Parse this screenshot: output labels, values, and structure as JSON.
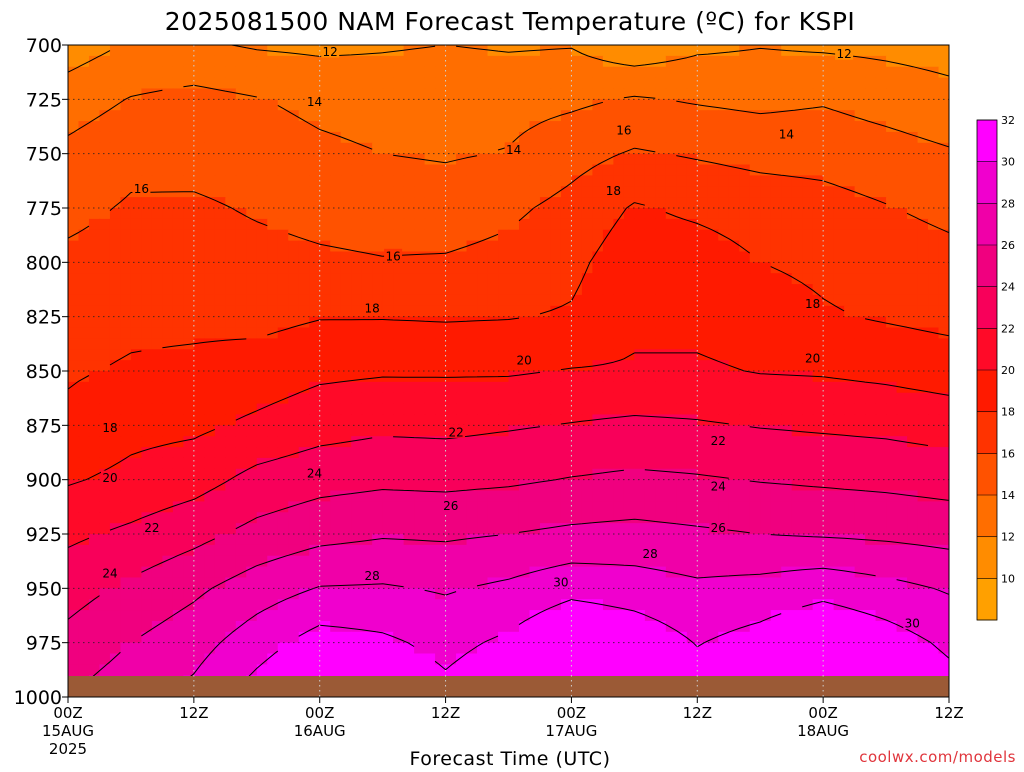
{
  "chart_data": {
    "type": "heatmap",
    "title": "2025081500 NAM Forecast Temperature (ºC) for KSPI",
    "xlabel": "Forecast Time (UTC)",
    "ylabel": "",
    "y_axis": {
      "ticks": [
        700,
        725,
        750,
        775,
        800,
        825,
        850,
        875,
        900,
        925,
        950,
        975,
        1000
      ],
      "range": [
        700,
        1000
      ],
      "reversed": true
    },
    "x_axis": {
      "range_hours": [
        0,
        84
      ],
      "ticks": [
        {
          "hour": 0,
          "top": "00Z",
          "mid": "15AUG",
          "bottom": "2025"
        },
        {
          "hour": 12,
          "top": "12Z",
          "mid": "",
          "bottom": ""
        },
        {
          "hour": 24,
          "top": "00Z",
          "mid": "16AUG",
          "bottom": ""
        },
        {
          "hour": 36,
          "top": "12Z",
          "mid": "",
          "bottom": ""
        },
        {
          "hour": 48,
          "top": "00Z",
          "mid": "17AUG",
          "bottom": ""
        },
        {
          "hour": 60,
          "top": "12Z",
          "mid": "",
          "bottom": ""
        },
        {
          "hour": 72,
          "top": "00Z",
          "mid": "18AUG",
          "bottom": ""
        },
        {
          "hour": 84,
          "top": "12Z",
          "mid": "",
          "bottom": ""
        }
      ]
    },
    "grid": true,
    "colorbar": {
      "labels": [
        10,
        12,
        14,
        16,
        18,
        20,
        22,
        24,
        26,
        28,
        30,
        32
      ],
      "colors": [
        "#FFA000",
        "#FF8C00",
        "#FF6E00",
        "#FF5200",
        "#FF3300",
        "#FF1A00",
        "#FF0A28",
        "#F8005A",
        "#F0007F",
        "#F000A8",
        "#F000CE",
        "#FF00FF"
      ]
    },
    "contour_levels": [
      12,
      14,
      16,
      18,
      20,
      22,
      24,
      26,
      28,
      30
    ],
    "contour_labels": [
      {
        "text": "12",
        "hour": 25,
        "p": 703
      },
      {
        "text": "12",
        "hour": 74,
        "p": 704
      },
      {
        "text": "14",
        "hour": 23.5,
        "p": 726
      },
      {
        "text": "14",
        "hour": 42.5,
        "p": 748
      },
      {
        "text": "14",
        "hour": 68.5,
        "p": 741
      },
      {
        "text": "16",
        "hour": 7,
        "p": 766
      },
      {
        "text": "16",
        "hour": 31,
        "p": 797
      },
      {
        "text": "16",
        "hour": 53,
        "p": 739
      },
      {
        "text": "18",
        "hour": 4,
        "p": 876
      },
      {
        "text": "18",
        "hour": 29,
        "p": 821
      },
      {
        "text": "18",
        "hour": 52,
        "p": 767
      },
      {
        "text": "18",
        "hour": 71,
        "p": 819
      },
      {
        "text": "20",
        "hour": 4,
        "p": 899
      },
      {
        "text": "20",
        "hour": 43.5,
        "p": 845
      },
      {
        "text": "20",
        "hour": 71,
        "p": 844
      },
      {
        "text": "22",
        "hour": 8,
        "p": 922
      },
      {
        "text": "22",
        "hour": 37,
        "p": 878
      },
      {
        "text": "22",
        "hour": 62,
        "p": 882
      },
      {
        "text": "24",
        "hour": 4,
        "p": 943
      },
      {
        "text": "24",
        "hour": 23.5,
        "p": 897
      },
      {
        "text": "24",
        "hour": 62,
        "p": 903
      },
      {
        "text": "26",
        "hour": 36.5,
        "p": 912
      },
      {
        "text": "26",
        "hour": 62,
        "p": 922
      },
      {
        "text": "28",
        "hour": 29,
        "p": 944
      },
      {
        "text": "28",
        "hour": 55.5,
        "p": 934
      },
      {
        "text": "30",
        "hour": 47,
        "p": 947
      },
      {
        "text": "30",
        "hour": 80.5,
        "p": 966
      }
    ],
    "temperature_profile": {
      "hours": [
        0,
        6,
        12,
        18,
        24,
        30,
        36,
        42,
        48,
        54,
        60,
        66,
        72,
        78,
        84
      ],
      "p_levels": [
        700,
        725,
        750,
        775,
        800,
        825,
        850,
        875,
        900,
        925,
        950,
        975,
        1000
      ],
      "values": [
        [
          11.0,
          12.2,
          12.3,
          11.8,
          11.6,
          11.8,
          12.0,
          11.8,
          11.9,
          10.6,
          11.6,
          11.9,
          11.7,
          11.5,
          11.2
        ],
        [
          13.0,
          14.1,
          14.6,
          14.1,
          13.5,
          13.2,
          13.4,
          13.3,
          13.6,
          14.2,
          13.8,
          13.5,
          13.8,
          13.2,
          12.6
        ],
        [
          14.5,
          15.5,
          15.3,
          15.0,
          14.4,
          14.0,
          13.8,
          14.1,
          15.3,
          16.2,
          15.8,
          15.4,
          15.3,
          14.8,
          14.2
        ],
        [
          15.5,
          16.2,
          16.3,
          15.8,
          15.4,
          15.2,
          15.0,
          15.6,
          16.6,
          18.2,
          17.6,
          17.1,
          16.7,
          16.1,
          15.5
        ],
        [
          16.4,
          16.8,
          16.9,
          16.6,
          16.3,
          16.1,
          16.2,
          16.6,
          17.5,
          19.2,
          19.0,
          18.0,
          17.6,
          17.1,
          16.6
        ],
        [
          17.2,
          17.6,
          17.6,
          17.4,
          17.9,
          17.9,
          17.8,
          17.9,
          18.2,
          19.6,
          19.4,
          18.9,
          18.2,
          17.8,
          17.4
        ],
        [
          17.8,
          18.2,
          18.4,
          18.9,
          19.6,
          19.8,
          19.8,
          19.8,
          20.1,
          20.2,
          20.3,
          19.9,
          19.8,
          19.5,
          19.1
        ],
        [
          18.4,
          19.4,
          19.6,
          20.4,
          21.2,
          21.6,
          21.5,
          21.8,
          22.1,
          22.4,
          22.2,
          21.9,
          21.7,
          21.5,
          21.1
        ],
        [
          19.8,
          20.5,
          21.2,
          22.6,
          23.3,
          23.6,
          23.5,
          23.7,
          24.1,
          24.4,
          24.2,
          23.9,
          23.7,
          23.5,
          23.2
        ],
        [
          21.6,
          22.4,
          23.4,
          24.6,
          25.4,
          25.8,
          25.7,
          26.0,
          26.4,
          26.6,
          26.3,
          26.0,
          25.8,
          25.6,
          25.3
        ],
        [
          23.2,
          24.4,
          25.6,
          27.0,
          28.1,
          28.2,
          27.8,
          28.4,
          29.4,
          29.0,
          28.4,
          28.7,
          29.3,
          28.6,
          27.8
        ],
        [
          24.6,
          26.0,
          27.2,
          29.1,
          30.9,
          30.4,
          29.4,
          30.4,
          32.3,
          31.4,
          29.9,
          30.8,
          32.2,
          31.0,
          29.6
        ],
        [
          26.0,
          27.3,
          28.6,
          31.0,
          33.0,
          32.0,
          30.6,
          32.0,
          34.0,
          33.0,
          31.2,
          32.2,
          33.6,
          32.3,
          31.0
        ]
      ]
    }
  },
  "credit": "coolwx.com/models"
}
